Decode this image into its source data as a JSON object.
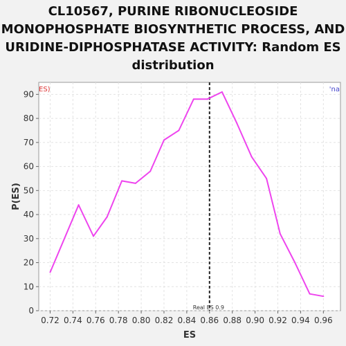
{
  "chart_data": {
    "type": "line",
    "title": "CL10567, PURINE RIBONUCLEOSIDE MONOPHOSPHATE BIOSYNTHETIC PROCESS, AND URIDINE-DIPHOSPHATASE ACTIVITY: Random ES distribution",
    "xlabel": "ES",
    "ylabel": "P(ES)",
    "xlim": [
      0.71,
      0.975
    ],
    "ylim": [
      0,
      95
    ],
    "xticks": [
      0.72,
      0.74,
      0.76,
      0.78,
      0.8,
      0.82,
      0.84,
      0.86,
      0.88,
      0.9,
      0.92,
      0.94,
      0.96
    ],
    "xtick_labels": [
      "0.72",
      "0.74",
      "0.76",
      "0.78",
      "0.80",
      "0.82",
      "0.84",
      "0.86",
      "0.88",
      "0.90",
      "0.92",
      "0.94",
      "0.96"
    ],
    "yticks": [
      0,
      10,
      20,
      30,
      40,
      50,
      60,
      70,
      80,
      90
    ],
    "ytick_labels": [
      "0",
      "10",
      "20",
      "30",
      "40",
      "50",
      "60",
      "70",
      "80",
      "90"
    ],
    "grid": true,
    "series": [
      {
        "color": "#ee44ee",
        "x": [
          0.72,
          0.745,
          0.758,
          0.77,
          0.783,
          0.795,
          0.808,
          0.82,
          0.833,
          0.846,
          0.858,
          0.871,
          0.884,
          0.897,
          0.91,
          0.922,
          0.935,
          0.948,
          0.96
        ],
        "y": [
          16,
          44,
          31,
          39,
          54,
          53,
          58,
          71,
          75,
          88,
          88,
          91,
          78,
          64,
          55,
          32,
          20,
          7,
          6
        ]
      }
    ],
    "reference_line": {
      "x": 0.86,
      "label": "Real ES 0.9",
      "style": "dashed",
      "color": "#222222"
    },
    "legend_left": {
      "text": "ES)",
      "color": "#dd3333"
    },
    "legend_right": {
      "text": "'na",
      "color": "#4444cc"
    }
  }
}
